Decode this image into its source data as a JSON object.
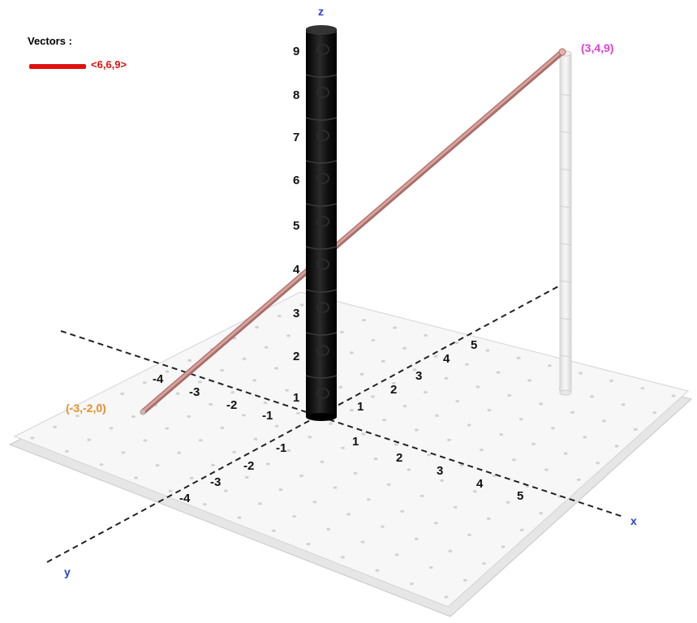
{
  "legend": {
    "title": "Vectors :",
    "vector_label": "<6,6,9>",
    "vector_color": "#e01010"
  },
  "axes": {
    "x_label": "x",
    "y_label": "y",
    "z_label": "z"
  },
  "points": {
    "start": {
      "label": "(-3,-2,0)",
      "color": "#e8902a"
    },
    "end": {
      "label": "(3,4,9)",
      "color": "#e040d8"
    }
  },
  "x_ticks": [
    "1",
    "2",
    "3",
    "4",
    "5"
  ],
  "x_neg_ticks": [
    "-1",
    "-2",
    "-3",
    "-4"
  ],
  "y_ticks": [
    "1",
    "2",
    "3",
    "4",
    "5"
  ],
  "y_neg_ticks": [
    "-1",
    "-2",
    "-3",
    "-4"
  ],
  "z_ticks": [
    "1",
    "2",
    "3",
    "4",
    "5",
    "6",
    "7",
    "8",
    "9"
  ],
  "colors": {
    "axis_label": "#2a3fd6",
    "z_pole": "#111111",
    "vector_tube": "#c98c88"
  }
}
